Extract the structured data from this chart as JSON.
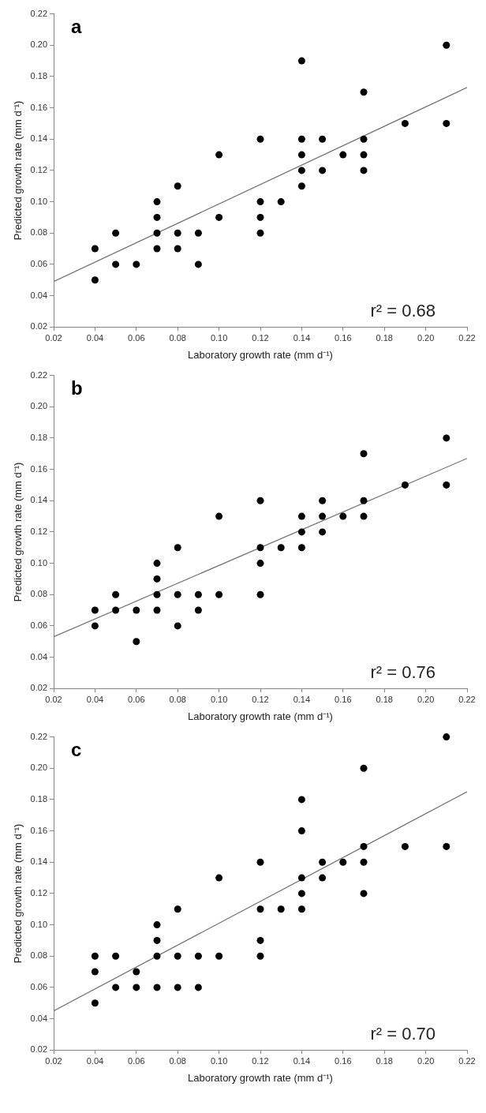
{
  "chart_data": [
    {
      "type": "scatter",
      "title": "a",
      "xlabel": "Laboratory growth rate (mm d⁻¹)",
      "ylabel": "Predicted growth rate (mm d⁻¹)",
      "annotations": [
        "r² = 0.68"
      ],
      "grid": false,
      "legend": false,
      "xlim": [
        0.02,
        0.22
      ],
      "ylim": [
        0.02,
        0.22
      ],
      "xticks": [
        {
          "value": 0.02,
          "label": "0.02"
        },
        {
          "value": 0.04,
          "label": "0.04"
        },
        {
          "value": 0.06,
          "label": "0.06"
        },
        {
          "value": 0.08,
          "label": "0.08"
        },
        {
          "value": 0.1,
          "label": "0.10"
        },
        {
          "value": 0.12,
          "label": "0.12"
        },
        {
          "value": 0.14,
          "label": "0.14"
        },
        {
          "value": 0.16,
          "label": "0.16"
        },
        {
          "value": 0.18,
          "label": "0.18"
        },
        {
          "value": 0.2,
          "label": "0.20"
        },
        {
          "value": 0.22,
          "label": "0.22"
        }
      ],
      "yticks": [
        {
          "value": 0.02,
          "label": "0.02"
        },
        {
          "value": 0.04,
          "label": "0.04"
        },
        {
          "value": 0.06,
          "label": "0.06"
        },
        {
          "value": 0.08,
          "label": "0.08"
        },
        {
          "value": 0.1,
          "label": "0.10"
        },
        {
          "value": 0.12,
          "label": "0.12"
        },
        {
          "value": 0.14,
          "label": "0.14"
        },
        {
          "value": 0.16,
          "label": "0.16"
        },
        {
          "value": 0.18,
          "label": "0.18"
        },
        {
          "value": 0.2,
          "label": "0.20"
        },
        {
          "value": 0.22,
          "label": "0.22"
        }
      ],
      "series": [
        {
          "marker": "circle",
          "color": "#000000",
          "x": [
            0.04,
            0.04,
            0.05,
            0.05,
            0.06,
            0.07,
            0.07,
            0.07,
            0.07,
            0.08,
            0.08,
            0.08,
            0.09,
            0.09,
            0.1,
            0.1,
            0.12,
            0.12,
            0.12,
            0.12,
            0.13,
            0.14,
            0.14,
            0.14,
            0.14,
            0.14,
            0.15,
            0.15,
            0.16,
            0.17,
            0.17,
            0.17,
            0.17,
            0.19,
            0.21,
            0.21
          ],
          "values": [
            0.07,
            0.05,
            0.08,
            0.06,
            0.06,
            0.1,
            0.09,
            0.08,
            0.07,
            0.11,
            0.08,
            0.07,
            0.08,
            0.06,
            0.13,
            0.09,
            0.14,
            0.1,
            0.09,
            0.08,
            0.1,
            0.19,
            0.14,
            0.13,
            0.12,
            0.11,
            0.14,
            0.12,
            0.13,
            0.17,
            0.14,
            0.13,
            0.12,
            0.15,
            0.2,
            0.15
          ]
        },
        {
          "type": "line",
          "color": "#707070",
          "x": [
            0.02,
            0.22
          ],
          "values": [
            0.049,
            0.173
          ]
        }
      ]
    },
    {
      "type": "scatter",
      "title": "b",
      "xlabel": "Laboratory growth rate (mm d⁻¹)",
      "ylabel": "Predicted growth rate (mm d⁻¹)",
      "annotations": [
        "r² = 0.76"
      ],
      "grid": false,
      "legend": false,
      "xlim": [
        0.02,
        0.22
      ],
      "ylim": [
        0.02,
        0.22
      ],
      "xticks": [
        {
          "value": 0.02,
          "label": "0.02"
        },
        {
          "value": 0.04,
          "label": "0.04"
        },
        {
          "value": 0.06,
          "label": "0.06"
        },
        {
          "value": 0.08,
          "label": "0.08"
        },
        {
          "value": 0.1,
          "label": "0.10"
        },
        {
          "value": 0.12,
          "label": "0.12"
        },
        {
          "value": 0.14,
          "label": "0.14"
        },
        {
          "value": 0.16,
          "label": "0.16"
        },
        {
          "value": 0.18,
          "label": "0.18"
        },
        {
          "value": 0.2,
          "label": "0.20"
        },
        {
          "value": 0.22,
          "label": "0.22"
        }
      ],
      "yticks": [
        {
          "value": 0.02,
          "label": "0.02"
        },
        {
          "value": 0.04,
          "label": "0.04"
        },
        {
          "value": 0.06,
          "label": "0.06"
        },
        {
          "value": 0.08,
          "label": "0.08"
        },
        {
          "value": 0.1,
          "label": "0.10"
        },
        {
          "value": 0.12,
          "label": "0.12"
        },
        {
          "value": 0.14,
          "label": "0.14"
        },
        {
          "value": 0.16,
          "label": "0.16"
        },
        {
          "value": 0.18,
          "label": "0.18"
        },
        {
          "value": 0.2,
          "label": "0.20"
        },
        {
          "value": 0.22,
          "label": "0.22"
        }
      ],
      "series": [
        {
          "marker": "circle",
          "color": "#000000",
          "x": [
            0.04,
            0.04,
            0.05,
            0.05,
            0.06,
            0.06,
            0.07,
            0.07,
            0.07,
            0.07,
            0.08,
            0.08,
            0.08,
            0.09,
            0.09,
            0.1,
            0.1,
            0.12,
            0.12,
            0.12,
            0.12,
            0.13,
            0.14,
            0.14,
            0.14,
            0.15,
            0.15,
            0.15,
            0.16,
            0.17,
            0.17,
            0.17,
            0.19,
            0.21,
            0.21
          ],
          "values": [
            0.07,
            0.06,
            0.08,
            0.07,
            0.07,
            0.05,
            0.1,
            0.09,
            0.08,
            0.07,
            0.11,
            0.08,
            0.06,
            0.08,
            0.07,
            0.13,
            0.08,
            0.14,
            0.11,
            0.1,
            0.08,
            0.11,
            0.13,
            0.12,
            0.11,
            0.14,
            0.13,
            0.12,
            0.13,
            0.17,
            0.14,
            0.13,
            0.15,
            0.18,
            0.15
          ]
        },
        {
          "type": "line",
          "color": "#707070",
          "x": [
            0.02,
            0.22
          ],
          "values": [
            0.053,
            0.167
          ]
        }
      ]
    },
    {
      "type": "scatter",
      "title": "c",
      "xlabel": "Laboratory growth rate (mm d⁻¹)",
      "ylabel": "Predicted growth rate (mm d⁻¹)",
      "annotations": [
        "r² = 0.70"
      ],
      "grid": false,
      "legend": false,
      "xlim": [
        0.02,
        0.22
      ],
      "ylim": [
        0.02,
        0.22
      ],
      "xticks": [
        {
          "value": 0.02,
          "label": "0.02"
        },
        {
          "value": 0.04,
          "label": "0.04"
        },
        {
          "value": 0.06,
          "label": "0.06"
        },
        {
          "value": 0.08,
          "label": "0.08"
        },
        {
          "value": 0.1,
          "label": "0.10"
        },
        {
          "value": 0.12,
          "label": "0.12"
        },
        {
          "value": 0.14,
          "label": "0.14"
        },
        {
          "value": 0.16,
          "label": "0.16"
        },
        {
          "value": 0.18,
          "label": "0.18"
        },
        {
          "value": 0.2,
          "label": "0.20"
        },
        {
          "value": 0.22,
          "label": "0.22"
        }
      ],
      "yticks": [
        {
          "value": 0.02,
          "label": "0.02"
        },
        {
          "value": 0.04,
          "label": "0.04"
        },
        {
          "value": 0.06,
          "label": "0.06"
        },
        {
          "value": 0.08,
          "label": "0.08"
        },
        {
          "value": 0.1,
          "label": "0.10"
        },
        {
          "value": 0.12,
          "label": "0.12"
        },
        {
          "value": 0.14,
          "label": "0.14"
        },
        {
          "value": 0.16,
          "label": "0.16"
        },
        {
          "value": 0.18,
          "label": "0.18"
        },
        {
          "value": 0.2,
          "label": "0.20"
        },
        {
          "value": 0.22,
          "label": "0.22"
        }
      ],
      "series": [
        {
          "marker": "circle",
          "color": "#000000",
          "x": [
            0.04,
            0.04,
            0.04,
            0.05,
            0.05,
            0.06,
            0.06,
            0.07,
            0.07,
            0.07,
            0.07,
            0.08,
            0.08,
            0.08,
            0.09,
            0.09,
            0.1,
            0.1,
            0.12,
            0.12,
            0.12,
            0.12,
            0.13,
            0.14,
            0.14,
            0.14,
            0.14,
            0.14,
            0.15,
            0.15,
            0.16,
            0.17,
            0.17,
            0.17,
            0.17,
            0.19,
            0.21,
            0.21
          ],
          "values": [
            0.08,
            0.07,
            0.05,
            0.08,
            0.06,
            0.07,
            0.06,
            0.1,
            0.09,
            0.08,
            0.06,
            0.11,
            0.08,
            0.06,
            0.08,
            0.06,
            0.13,
            0.08,
            0.14,
            0.11,
            0.09,
            0.08,
            0.11,
            0.18,
            0.16,
            0.13,
            0.12,
            0.11,
            0.14,
            0.13,
            0.14,
            0.2,
            0.15,
            0.14,
            0.12,
            0.15,
            0.22,
            0.15
          ]
        },
        {
          "type": "line",
          "color": "#707070",
          "x": [
            0.02,
            0.22
          ],
          "values": [
            0.045,
            0.185
          ]
        }
      ]
    }
  ]
}
